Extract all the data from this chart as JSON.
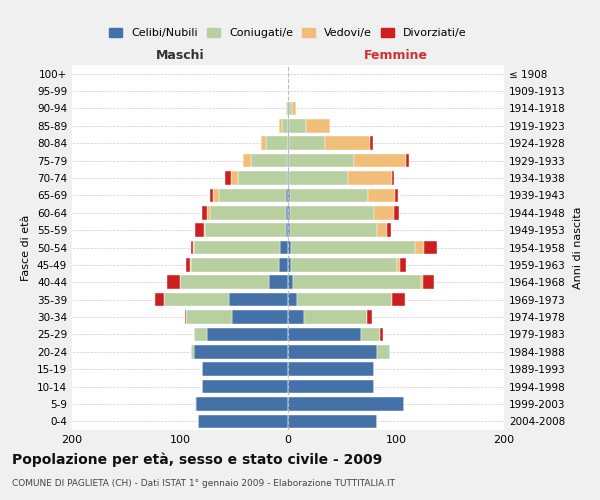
{
  "age_groups": [
    "0-4",
    "5-9",
    "10-14",
    "15-19",
    "20-24",
    "25-29",
    "30-34",
    "35-39",
    "40-44",
    "45-49",
    "50-54",
    "55-59",
    "60-64",
    "65-69",
    "70-74",
    "75-79",
    "80-84",
    "85-89",
    "90-94",
    "95-99",
    "100+"
  ],
  "birth_years": [
    "2004-2008",
    "1999-2003",
    "1994-1998",
    "1989-1993",
    "1984-1988",
    "1979-1983",
    "1974-1978",
    "1969-1973",
    "1964-1968",
    "1959-1963",
    "1954-1958",
    "1949-1953",
    "1944-1948",
    "1939-1943",
    "1934-1938",
    "1929-1933",
    "1924-1928",
    "1919-1923",
    "1914-1918",
    "1909-1913",
    "≤ 1908"
  ],
  "maschi": {
    "celibi": [
      83,
      85,
      80,
      80,
      87,
      75,
      52,
      55,
      18,
      8,
      7,
      2,
      2,
      2,
      1,
      1,
      0,
      0,
      0,
      0,
      0
    ],
    "coniugati": [
      0,
      1,
      0,
      0,
      3,
      12,
      42,
      60,
      82,
      82,
      80,
      75,
      70,
      62,
      45,
      33,
      20,
      6,
      2,
      0,
      0
    ],
    "vedovi": [
      0,
      0,
      0,
      0,
      0,
      0,
      0,
      0,
      0,
      1,
      1,
      1,
      3,
      5,
      7,
      8,
      5,
      2,
      0,
      0,
      0
    ],
    "divorziati": [
      0,
      0,
      0,
      0,
      0,
      0,
      1,
      8,
      12,
      3,
      2,
      8,
      5,
      3,
      5,
      0,
      0,
      0,
      0,
      0,
      0
    ]
  },
  "femmine": {
    "nubili": [
      82,
      107,
      80,
      80,
      82,
      68,
      15,
      8,
      5,
      3,
      3,
      2,
      2,
      2,
      1,
      1,
      1,
      1,
      1,
      0,
      0
    ],
    "coniugate": [
      0,
      0,
      0,
      0,
      12,
      17,
      58,
      88,
      118,
      98,
      115,
      80,
      78,
      72,
      55,
      60,
      33,
      16,
      3,
      0,
      0
    ],
    "vedove": [
      0,
      0,
      0,
      0,
      0,
      0,
      0,
      0,
      2,
      3,
      8,
      10,
      18,
      25,
      40,
      48,
      42,
      22,
      3,
      0,
      0
    ],
    "divorziate": [
      0,
      0,
      0,
      0,
      0,
      3,
      5,
      12,
      10,
      5,
      12,
      3,
      5,
      3,
      2,
      3,
      3,
      0,
      0,
      0,
      0
    ]
  },
  "colors": {
    "celibi": "#4472a8",
    "coniugati": "#b8cfa0",
    "vedovi": "#f0be78",
    "divorziati": "#cc2020"
  },
  "legend_labels": [
    "Celibi/Nubili",
    "Coniugati/e",
    "Vedovi/e",
    "Divorziati/e"
  ],
  "title": "Popolazione per età, sesso e stato civile - 2009",
  "subtitle": "COMUNE DI PAGLIETA (CH) - Dati ISTAT 1° gennaio 2009 - Elaborazione TUTTITALIA.IT",
  "maschi_label": "Maschi",
  "femmine_label": "Femmine",
  "ylabel_left": "Fasce di età",
  "ylabel_right": "Anni di nascita",
  "xlim": 200,
  "background_color": "#f0f0f0",
  "plot_bg_color": "#ffffff"
}
